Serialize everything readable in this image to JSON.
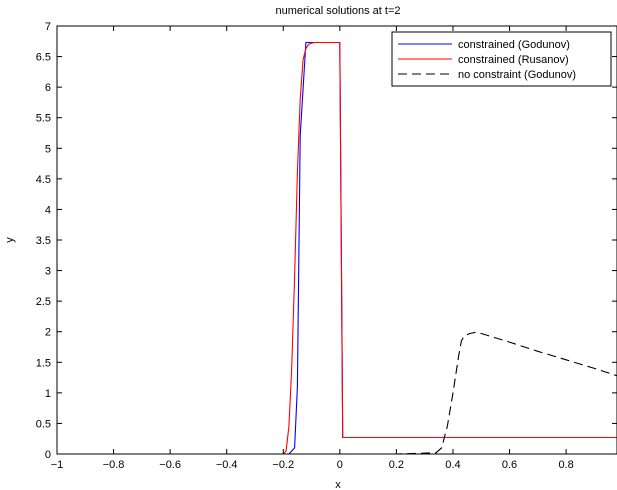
{
  "chart_data": {
    "type": "line",
    "title": "numerical solutions at t=2",
    "xlabel": "x",
    "ylabel": "y",
    "xlim": [
      -1,
      0.98
    ],
    "ylim": [
      0,
      7
    ],
    "xticks": [
      -1,
      -0.8,
      -0.6,
      -0.4,
      -0.2,
      0,
      0.2,
      0.4,
      0.6,
      0.8
    ],
    "yticks": [
      0,
      0.5,
      1,
      1.5,
      2,
      2.5,
      3,
      3.5,
      4,
      4.5,
      5,
      5.5,
      6,
      6.5,
      7
    ],
    "grid": false,
    "legend_position": "top-right",
    "series": [
      {
        "name": "constrained (Godunov)",
        "color": "#0000ff",
        "dash": "solid",
        "x": [
          -1,
          -0.18,
          -0.16,
          -0.15,
          -0.14,
          -0.12,
          -0.1,
          -0.08,
          -0.06,
          -0.04,
          -0.02,
          -0.01,
          0.0,
          0.01,
          0.02,
          0.1,
          0.3,
          0.5,
          0.7,
          0.9,
          0.98
        ],
        "y": [
          0,
          0,
          0.1,
          1.1,
          5.2,
          6.73,
          6.73,
          6.73,
          6.73,
          6.73,
          6.73,
          6.73,
          6.73,
          0.27,
          0.27,
          0.27,
          0.27,
          0.27,
          0.27,
          0.27,
          0.27
        ]
      },
      {
        "name": "constrained (Rusanov)",
        "color": "#ff0000",
        "dash": "solid",
        "x": [
          -1,
          -0.2,
          -0.19,
          -0.18,
          -0.17,
          -0.16,
          -0.15,
          -0.14,
          -0.13,
          -0.12,
          -0.11,
          -0.1,
          -0.09,
          -0.08,
          -0.06,
          -0.04,
          -0.02,
          0.0,
          0.01,
          0.02,
          0.1,
          0.3,
          0.5,
          0.7,
          0.9,
          0.98
        ],
        "y": [
          0,
          0,
          0.05,
          0.45,
          1.4,
          2.9,
          4.6,
          5.8,
          6.45,
          6.63,
          6.7,
          6.72,
          6.73,
          6.73,
          6.73,
          6.73,
          6.73,
          6.73,
          0.27,
          0.27,
          0.27,
          0.27,
          0.27,
          0.27,
          0.27,
          0.27
        ]
      },
      {
        "name": "no constraint (Godunov)",
        "color": "#000000",
        "dash": "dashed",
        "x": [
          -1,
          -0.2,
          0.0,
          0.2,
          0.34,
          0.36,
          0.38,
          0.4,
          0.42,
          0.43,
          0.44,
          0.46,
          0.48,
          0.5,
          0.6,
          0.7,
          0.8,
          0.9,
          0.98
        ],
        "y": [
          0,
          0,
          0,
          0,
          0.02,
          0.1,
          0.45,
          1.0,
          1.6,
          1.85,
          1.93,
          1.97,
          1.99,
          1.97,
          1.83,
          1.68,
          1.54,
          1.4,
          1.28
        ]
      }
    ]
  }
}
